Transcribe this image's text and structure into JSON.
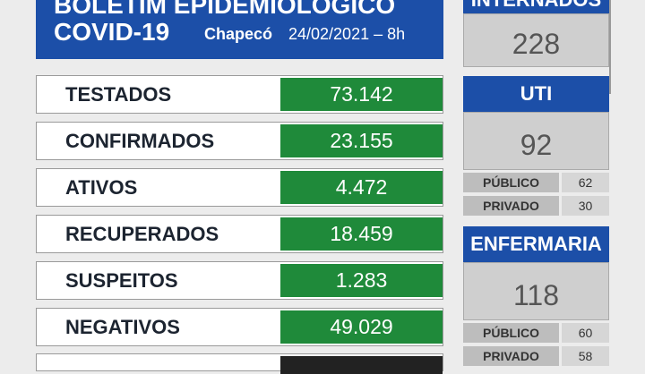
{
  "header": {
    "title": "BOLETIM EPIDEMIOLÓGICO",
    "subtitle": "COVID-19",
    "city": "Chapecó",
    "date": "24/02/2021 – 8h"
  },
  "rows": [
    {
      "label": "TESTADOS",
      "value": "73.142"
    },
    {
      "label": "CONFIRMADOS",
      "value": "23.155"
    },
    {
      "label": "ATIVOS",
      "value": "4.472"
    },
    {
      "label": "RECUPERADOS",
      "value": "18.459"
    },
    {
      "label": "SUSPEITOS",
      "value": "1.283"
    },
    {
      "label": "NEGATIVOS",
      "value": "49.029"
    }
  ],
  "panels": [
    {
      "title": "INTERNADOS",
      "value": "228",
      "breakdown": []
    },
    {
      "title": "UTI",
      "value": "92",
      "breakdown": [
        {
          "label": "PÚBLICO",
          "value": "62"
        },
        {
          "label": "PRIVADO",
          "value": "30"
        }
      ]
    },
    {
      "title": "ENFERMARIA",
      "value": "118",
      "breakdown": [
        {
          "label": "PÚBLICO",
          "value": "60"
        },
        {
          "label": "PRIVADO",
          "value": "58"
        }
      ]
    }
  ]
}
